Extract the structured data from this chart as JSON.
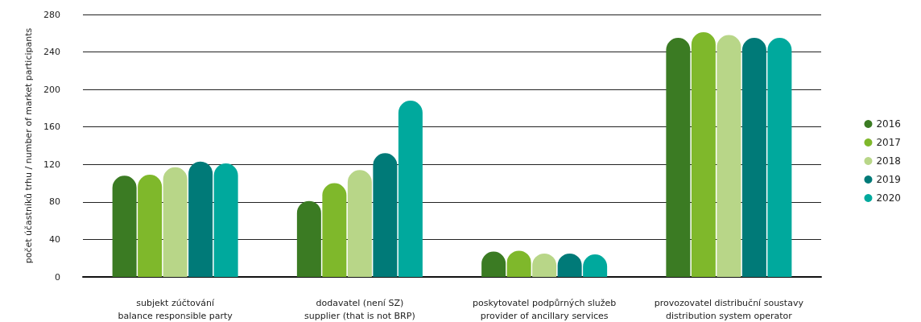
{
  "chart_data": {
    "type": "bar",
    "ylabel": "počet účastníků trhu / number of market participants",
    "categories": [
      "subjekt zúčtování\nbalance responsible party",
      "dodavatel (není SZ)\nsupplier (that is not BRP)",
      "poskytovatel podpůrných služeb\nprovider of ancillary services",
      "provozovatel distribuční soustavy\ndistribution system operator"
    ],
    "series": [
      {
        "name": "2016",
        "color": "#3b7b23",
        "values": [
          108,
          81,
          27,
          255
        ]
      },
      {
        "name": "2017",
        "color": "#7fb82b",
        "values": [
          109,
          100,
          28,
          261
        ]
      },
      {
        "name": "2018",
        "color": "#b8d688",
        "values": [
          117,
          114,
          25,
          258
        ]
      },
      {
        "name": "2019",
        "color": "#007a78",
        "values": [
          123,
          132,
          25,
          255
        ]
      },
      {
        "name": "2020",
        "color": "#00a99d",
        "values": [
          121,
          188,
          24,
          255
        ]
      }
    ],
    "ylim": [
      0,
      280
    ],
    "yticks": [
      0,
      40,
      80,
      120,
      160,
      200,
      240,
      280
    ],
    "grid": "y",
    "legend": "right",
    "marker": "circle"
  }
}
